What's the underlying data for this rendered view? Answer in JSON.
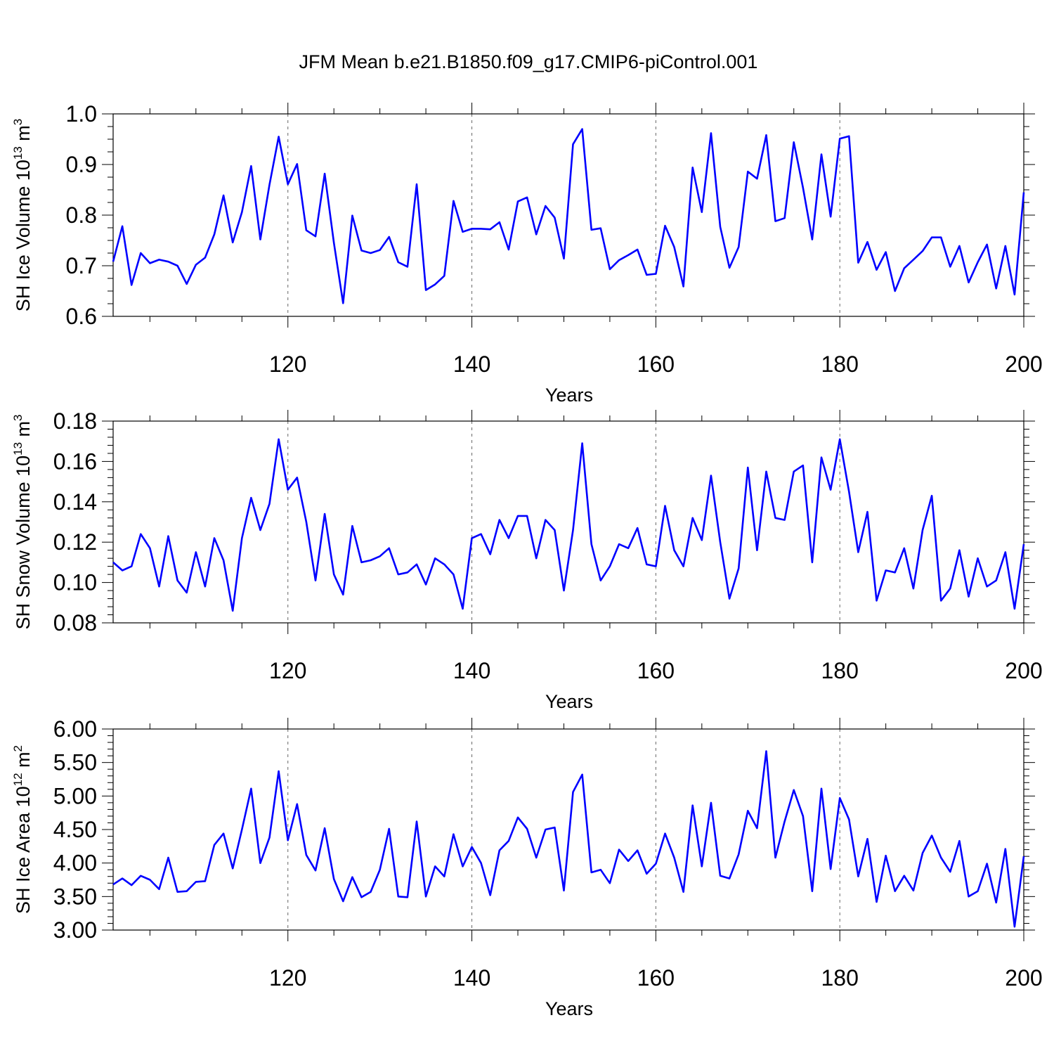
{
  "title": "JFM Mean b.e21.B1850.f09_g17.CMIP6-piControl.001",
  "colors": {
    "line": "#0000ff",
    "axis": "#000000",
    "grid": "#666666"
  },
  "chart_data": [
    {
      "type": "line",
      "ylabel": "SH Ice Volume 10",
      "ylabel_exp": "13",
      "ylabel_unit": " m",
      "ylabel_unit_exp": "3",
      "xlabel": "Years",
      "xlim": [
        101,
        200
      ],
      "ylim": [
        0.6,
        1.0
      ],
      "xticks": [
        120,
        140,
        160,
        180,
        200
      ],
      "xtick_labels": [
        "120",
        "140",
        "160",
        "180",
        "200"
      ],
      "yticks": [
        0.6,
        0.7,
        0.8,
        0.9,
        1.0
      ],
      "ytick_labels": [
        "0.6",
        "0.7",
        "0.8",
        "0.9",
        "1.0"
      ],
      "grid_x": [
        120,
        140,
        160,
        180
      ],
      "x_start": 101,
      "values": [
        0.708,
        0.778,
        0.662,
        0.725,
        0.705,
        0.712,
        0.708,
        0.7,
        0.664,
        0.702,
        0.716,
        0.762,
        0.839,
        0.746,
        0.806,
        0.897,
        0.752,
        0.86,
        0.955,
        0.861,
        0.901,
        0.77,
        0.758,
        0.882,
        0.745,
        0.626,
        0.799,
        0.73,
        0.725,
        0.731,
        0.757,
        0.707,
        0.698,
        0.861,
        0.652,
        0.663,
        0.68,
        0.828,
        0.767,
        0.773,
        0.773,
        0.772,
        0.786,
        0.732,
        0.827,
        0.835,
        0.762,
        0.818,
        0.795,
        0.714,
        0.94,
        0.97,
        0.771,
        0.774,
        0.693,
        0.711,
        0.721,
        0.732,
        0.682,
        0.684,
        0.779,
        0.737,
        0.659,
        0.894,
        0.806,
        0.962,
        0.777,
        0.696,
        0.737,
        0.886,
        0.872,
        0.958,
        0.788,
        0.794,
        0.944,
        0.854,
        0.752,
        0.92,
        0.797,
        0.951,
        0.956,
        0.706,
        0.747,
        0.692,
        0.727,
        0.65,
        0.695,
        0.712,
        0.729,
        0.756,
        0.756,
        0.698,
        0.739,
        0.667,
        0.707,
        0.742,
        0.655,
        0.739,
        0.643,
        0.845
      ]
    },
    {
      "type": "line",
      "ylabel": "SH Snow Volume 10",
      "ylabel_exp": "13",
      "ylabel_unit": " m",
      "ylabel_unit_exp": "3",
      "xlabel": "Years",
      "xlim": [
        101,
        200
      ],
      "ylim": [
        0.08,
        0.18
      ],
      "xticks": [
        120,
        140,
        160,
        180,
        200
      ],
      "xtick_labels": [
        "120",
        "140",
        "160",
        "180",
        "200"
      ],
      "yticks": [
        0.08,
        0.1,
        0.12,
        0.14,
        0.16,
        0.18
      ],
      "ytick_labels": [
        "0.08",
        "0.10",
        "0.12",
        "0.14",
        "0.16",
        "0.18"
      ],
      "grid_x": [
        120,
        140,
        160,
        180
      ],
      "x_start": 101,
      "values": [
        0.11,
        0.106,
        0.108,
        0.124,
        0.117,
        0.098,
        0.123,
        0.101,
        0.095,
        0.115,
        0.098,
        0.122,
        0.111,
        0.086,
        0.122,
        0.142,
        0.126,
        0.139,
        0.171,
        0.146,
        0.152,
        0.13,
        0.101,
        0.134,
        0.104,
        0.094,
        0.128,
        0.11,
        0.111,
        0.113,
        0.117,
        0.104,
        0.105,
        0.109,
        0.099,
        0.112,
        0.109,
        0.104,
        0.087,
        0.122,
        0.124,
        0.114,
        0.131,
        0.122,
        0.133,
        0.133,
        0.112,
        0.131,
        0.126,
        0.096,
        0.126,
        0.169,
        0.119,
        0.101,
        0.108,
        0.119,
        0.117,
        0.127,
        0.109,
        0.108,
        0.138,
        0.116,
        0.108,
        0.132,
        0.121,
        0.153,
        0.12,
        0.092,
        0.107,
        0.157,
        0.116,
        0.155,
        0.132,
        0.131,
        0.155,
        0.158,
        0.11,
        0.162,
        0.146,
        0.171,
        0.145,
        0.115,
        0.135,
        0.091,
        0.106,
        0.105,
        0.117,
        0.097,
        0.126,
        0.143,
        0.091,
        0.097,
        0.116,
        0.093,
        0.112,
        0.098,
        0.101,
        0.115,
        0.087,
        0.119
      ]
    },
    {
      "type": "line",
      "ylabel": "SH Ice Area 10",
      "ylabel_exp": "12",
      "ylabel_unit": " m",
      "ylabel_unit_exp": "2",
      "xlabel": "Years",
      "xlim": [
        101,
        200
      ],
      "ylim": [
        3.0,
        6.0
      ],
      "xticks": [
        120,
        140,
        160,
        180,
        200
      ],
      "xtick_labels": [
        "120",
        "140",
        "160",
        "180",
        "200"
      ],
      "yticks": [
        3.0,
        3.5,
        4.0,
        4.5,
        5.0,
        5.5,
        6.0
      ],
      "ytick_labels": [
        "3.00",
        "3.50",
        "4.00",
        "4.50",
        "5.00",
        "5.50",
        "6.00"
      ],
      "grid_x": [
        120,
        140,
        160,
        180
      ],
      "x_start": 101,
      "values": [
        3.68,
        3.77,
        3.67,
        3.81,
        3.75,
        3.61,
        4.08,
        3.57,
        3.58,
        3.72,
        3.73,
        4.27,
        4.44,
        3.92,
        4.5,
        5.11,
        4.0,
        4.38,
        5.37,
        4.34,
        4.88,
        4.12,
        3.89,
        4.52,
        3.76,
        3.43,
        3.79,
        3.49,
        3.57,
        3.9,
        4.51,
        3.5,
        3.49,
        4.62,
        3.5,
        3.95,
        3.8,
        4.43,
        3.95,
        4.24,
        4.0,
        3.52,
        4.19,
        4.33,
        4.68,
        4.51,
        4.08,
        4.5,
        4.53,
        3.59,
        5.06,
        5.32,
        3.86,
        3.9,
        3.7,
        4.2,
        4.03,
        4.19,
        3.84,
        3.99,
        4.44,
        4.08,
        3.57,
        4.86,
        3.95,
        4.9,
        3.81,
        3.77,
        4.13,
        4.78,
        4.52,
        5.67,
        4.08,
        4.62,
        5.09,
        4.7,
        3.58,
        5.11,
        3.91,
        4.97,
        4.65,
        3.8,
        4.36,
        3.42,
        4.11,
        3.58,
        3.81,
        3.59,
        4.15,
        4.41,
        4.08,
        3.87,
        4.33,
        3.5,
        3.58,
        3.99,
        3.41,
        4.21,
        3.05,
        4.1
      ]
    }
  ]
}
